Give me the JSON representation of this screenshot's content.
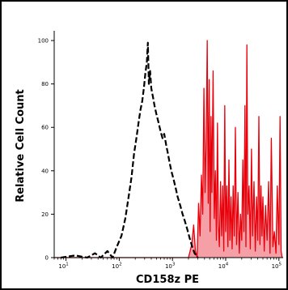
{
  "chart_data": {
    "type": "area",
    "title": "",
    "xlabel": "CD158z PE",
    "ylabel": "Relative Cell Count",
    "x_scale": "log",
    "xlim": [
      6,
      120000
    ],
    "ylim": [
      0,
      103
    ],
    "grid": false,
    "x_ticks": [
      {
        "value": 10,
        "base": "10",
        "exp": "1"
      },
      {
        "value": 100,
        "base": "10",
        "exp": "2"
      },
      {
        "value": 1000,
        "base": "10",
        "exp": "3"
      },
      {
        "value": 10000,
        "base": "10",
        "exp": "4"
      },
      {
        "value": 100000,
        "base": "10",
        "exp": "5"
      }
    ],
    "y_ticks": [
      "0",
      "20",
      "40",
      "60",
      "80",
      "100"
    ],
    "series": [
      {
        "style": "dashed",
        "color": "#000000",
        "fill": "none",
        "points": [
          [
            8,
            0
          ],
          [
            15,
            1
          ],
          [
            25,
            0
          ],
          [
            35,
            2
          ],
          [
            45,
            0
          ],
          [
            60,
            3
          ],
          [
            75,
            0
          ],
          [
            90,
            5
          ],
          [
            110,
            10
          ],
          [
            130,
            18
          ],
          [
            150,
            28
          ],
          [
            170,
            37
          ],
          [
            190,
            48
          ],
          [
            210,
            55
          ],
          [
            230,
            62
          ],
          [
            250,
            68
          ],
          [
            270,
            72
          ],
          [
            290,
            78
          ],
          [
            310,
            85
          ],
          [
            330,
            90
          ],
          [
            345,
            99
          ],
          [
            360,
            80
          ],
          [
            380,
            86
          ],
          [
            400,
            78
          ],
          [
            430,
            74
          ],
          [
            460,
            70
          ],
          [
            500,
            66
          ],
          [
            550,
            62
          ],
          [
            600,
            58
          ],
          [
            650,
            55
          ],
          [
            700,
            57
          ],
          [
            760,
            52
          ],
          [
            820,
            48
          ],
          [
            880,
            44
          ],
          [
            950,
            40
          ],
          [
            1050,
            36
          ],
          [
            1150,
            32
          ],
          [
            1250,
            28
          ],
          [
            1400,
            24
          ],
          [
            1550,
            20
          ],
          [
            1700,
            17
          ],
          [
            1900,
            13
          ],
          [
            2100,
            9
          ],
          [
            2350,
            5
          ],
          [
            2600,
            2
          ],
          [
            3000,
            0
          ]
        ]
      },
      {
        "style": "solid",
        "color": "#e8000b",
        "fill": "#f4a0a6",
        "points": [
          [
            6,
            0
          ],
          [
            2000,
            0
          ],
          [
            2300,
            6
          ],
          [
            2500,
            15
          ],
          [
            2700,
            3
          ],
          [
            2900,
            0
          ],
          [
            3100,
            25
          ],
          [
            3300,
            10
          ],
          [
            3500,
            38
          ],
          [
            3700,
            20
          ],
          [
            3900,
            78
          ],
          [
            4100,
            30
          ],
          [
            4300,
            55
          ],
          [
            4500,
            100
          ],
          [
            4700,
            25
          ],
          [
            4900,
            82
          ],
          [
            5100,
            12
          ],
          [
            5300,
            65
          ],
          [
            5500,
            30
          ],
          [
            5800,
            86
          ],
          [
            6100,
            18
          ],
          [
            6400,
            40
          ],
          [
            6700,
            8
          ],
          [
            7000,
            62
          ],
          [
            7300,
            15
          ],
          [
            7600,
            5
          ],
          [
            8000,
            35
          ],
          [
            8400,
            10
          ],
          [
            8800,
            33
          ],
          [
            9200,
            3
          ],
          [
            9600,
            70
          ],
          [
            10000,
            12
          ],
          [
            10500,
            33
          ],
          [
            11000,
            5
          ],
          [
            11500,
            45
          ],
          [
            12000,
            8
          ],
          [
            12600,
            28
          ],
          [
            13200,
            4
          ],
          [
            13800,
            33
          ],
          [
            14500,
            10
          ],
          [
            15200,
            60
          ],
          [
            16000,
            6
          ],
          [
            17000,
            30
          ],
          [
            18000,
            2
          ],
          [
            19000,
            20
          ],
          [
            20000,
            8
          ],
          [
            21000,
            45
          ],
          [
            22000,
            12
          ],
          [
            23000,
            70
          ],
          [
            24000,
            5
          ],
          [
            25000,
            98
          ],
          [
            26000,
            20
          ],
          [
            27500,
            33
          ],
          [
            29000,
            4
          ],
          [
            30500,
            50
          ],
          [
            32000,
            10
          ],
          [
            34000,
            35
          ],
          [
            36000,
            3
          ],
          [
            38000,
            28
          ],
          [
            40000,
            8
          ],
          [
            42000,
            65
          ],
          [
            44000,
            6
          ],
          [
            46000,
            33
          ],
          [
            48000,
            10
          ],
          [
            50000,
            28
          ],
          [
            53000,
            3
          ],
          [
            56000,
            24
          ],
          [
            60000,
            8
          ],
          [
            64000,
            35
          ],
          [
            68000,
            2
          ],
          [
            72000,
            55
          ],
          [
            77000,
            5
          ],
          [
            82000,
            12
          ],
          [
            88000,
            2
          ],
          [
            93000,
            33
          ],
          [
            100000,
            6
          ],
          [
            105000,
            65
          ],
          [
            110000,
            3
          ],
          [
            115000,
            0
          ]
        ]
      }
    ]
  }
}
